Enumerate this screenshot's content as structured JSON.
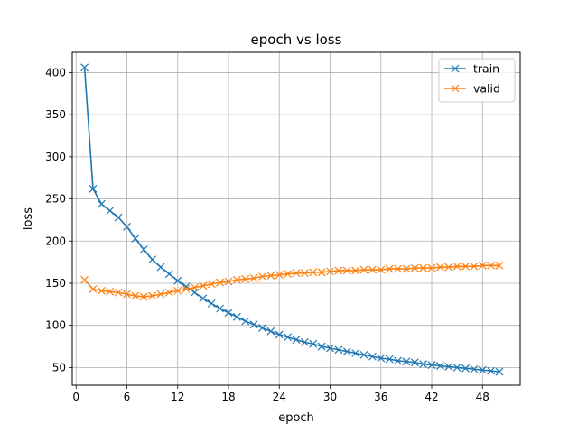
{
  "chart_data": {
    "type": "line",
    "title": "epoch vs loss",
    "xlabel": "epoch",
    "ylabel": "loss",
    "xlim": [
      -0.45,
      52.45
    ],
    "ylim": [
      29,
      424
    ],
    "xticks": [
      0,
      6,
      12,
      18,
      24,
      30,
      36,
      42,
      48
    ],
    "yticks": [
      50,
      100,
      150,
      200,
      250,
      300,
      350,
      400
    ],
    "grid": true,
    "legend_position": "top-right",
    "marker": "x",
    "x": [
      1,
      2,
      3,
      4,
      5,
      6,
      7,
      8,
      9,
      10,
      11,
      12,
      13,
      14,
      15,
      16,
      17,
      18,
      19,
      20,
      21,
      22,
      23,
      24,
      25,
      26,
      27,
      28,
      29,
      30,
      31,
      32,
      33,
      34,
      35,
      36,
      37,
      38,
      39,
      40,
      41,
      42,
      43,
      44,
      45,
      46,
      47,
      48,
      49,
      50
    ],
    "series": [
      {
        "name": "train",
        "color": "#1f77b4",
        "values": [
          406,
          262,
          244,
          236,
          228,
          217,
          203,
          190,
          178,
          169,
          161,
          153,
          146,
          139,
          132,
          126,
          120,
          115,
          110,
          105,
          101,
          97,
          93,
          89,
          86,
          83,
          80,
          78,
          75,
          73,
          71,
          69,
          67,
          65,
          63,
          61,
          60,
          58,
          57,
          56,
          54,
          53,
          52,
          51,
          50,
          49,
          48,
          47,
          46,
          45
        ]
      },
      {
        "name": "valid",
        "color": "#ff7f0e",
        "values": [
          154,
          143,
          141,
          140,
          139,
          137,
          135,
          134,
          135,
          137,
          139,
          141,
          143,
          145,
          147,
          149,
          151,
          152,
          154,
          155,
          156,
          158,
          159,
          160,
          161,
          162,
          162,
          163,
          163,
          164,
          165,
          165,
          165,
          166,
          166,
          166,
          167,
          167,
          167,
          168,
          168,
          168,
          169,
          169,
          170,
          170,
          170,
          171,
          171,
          171
        ]
      }
    ]
  }
}
